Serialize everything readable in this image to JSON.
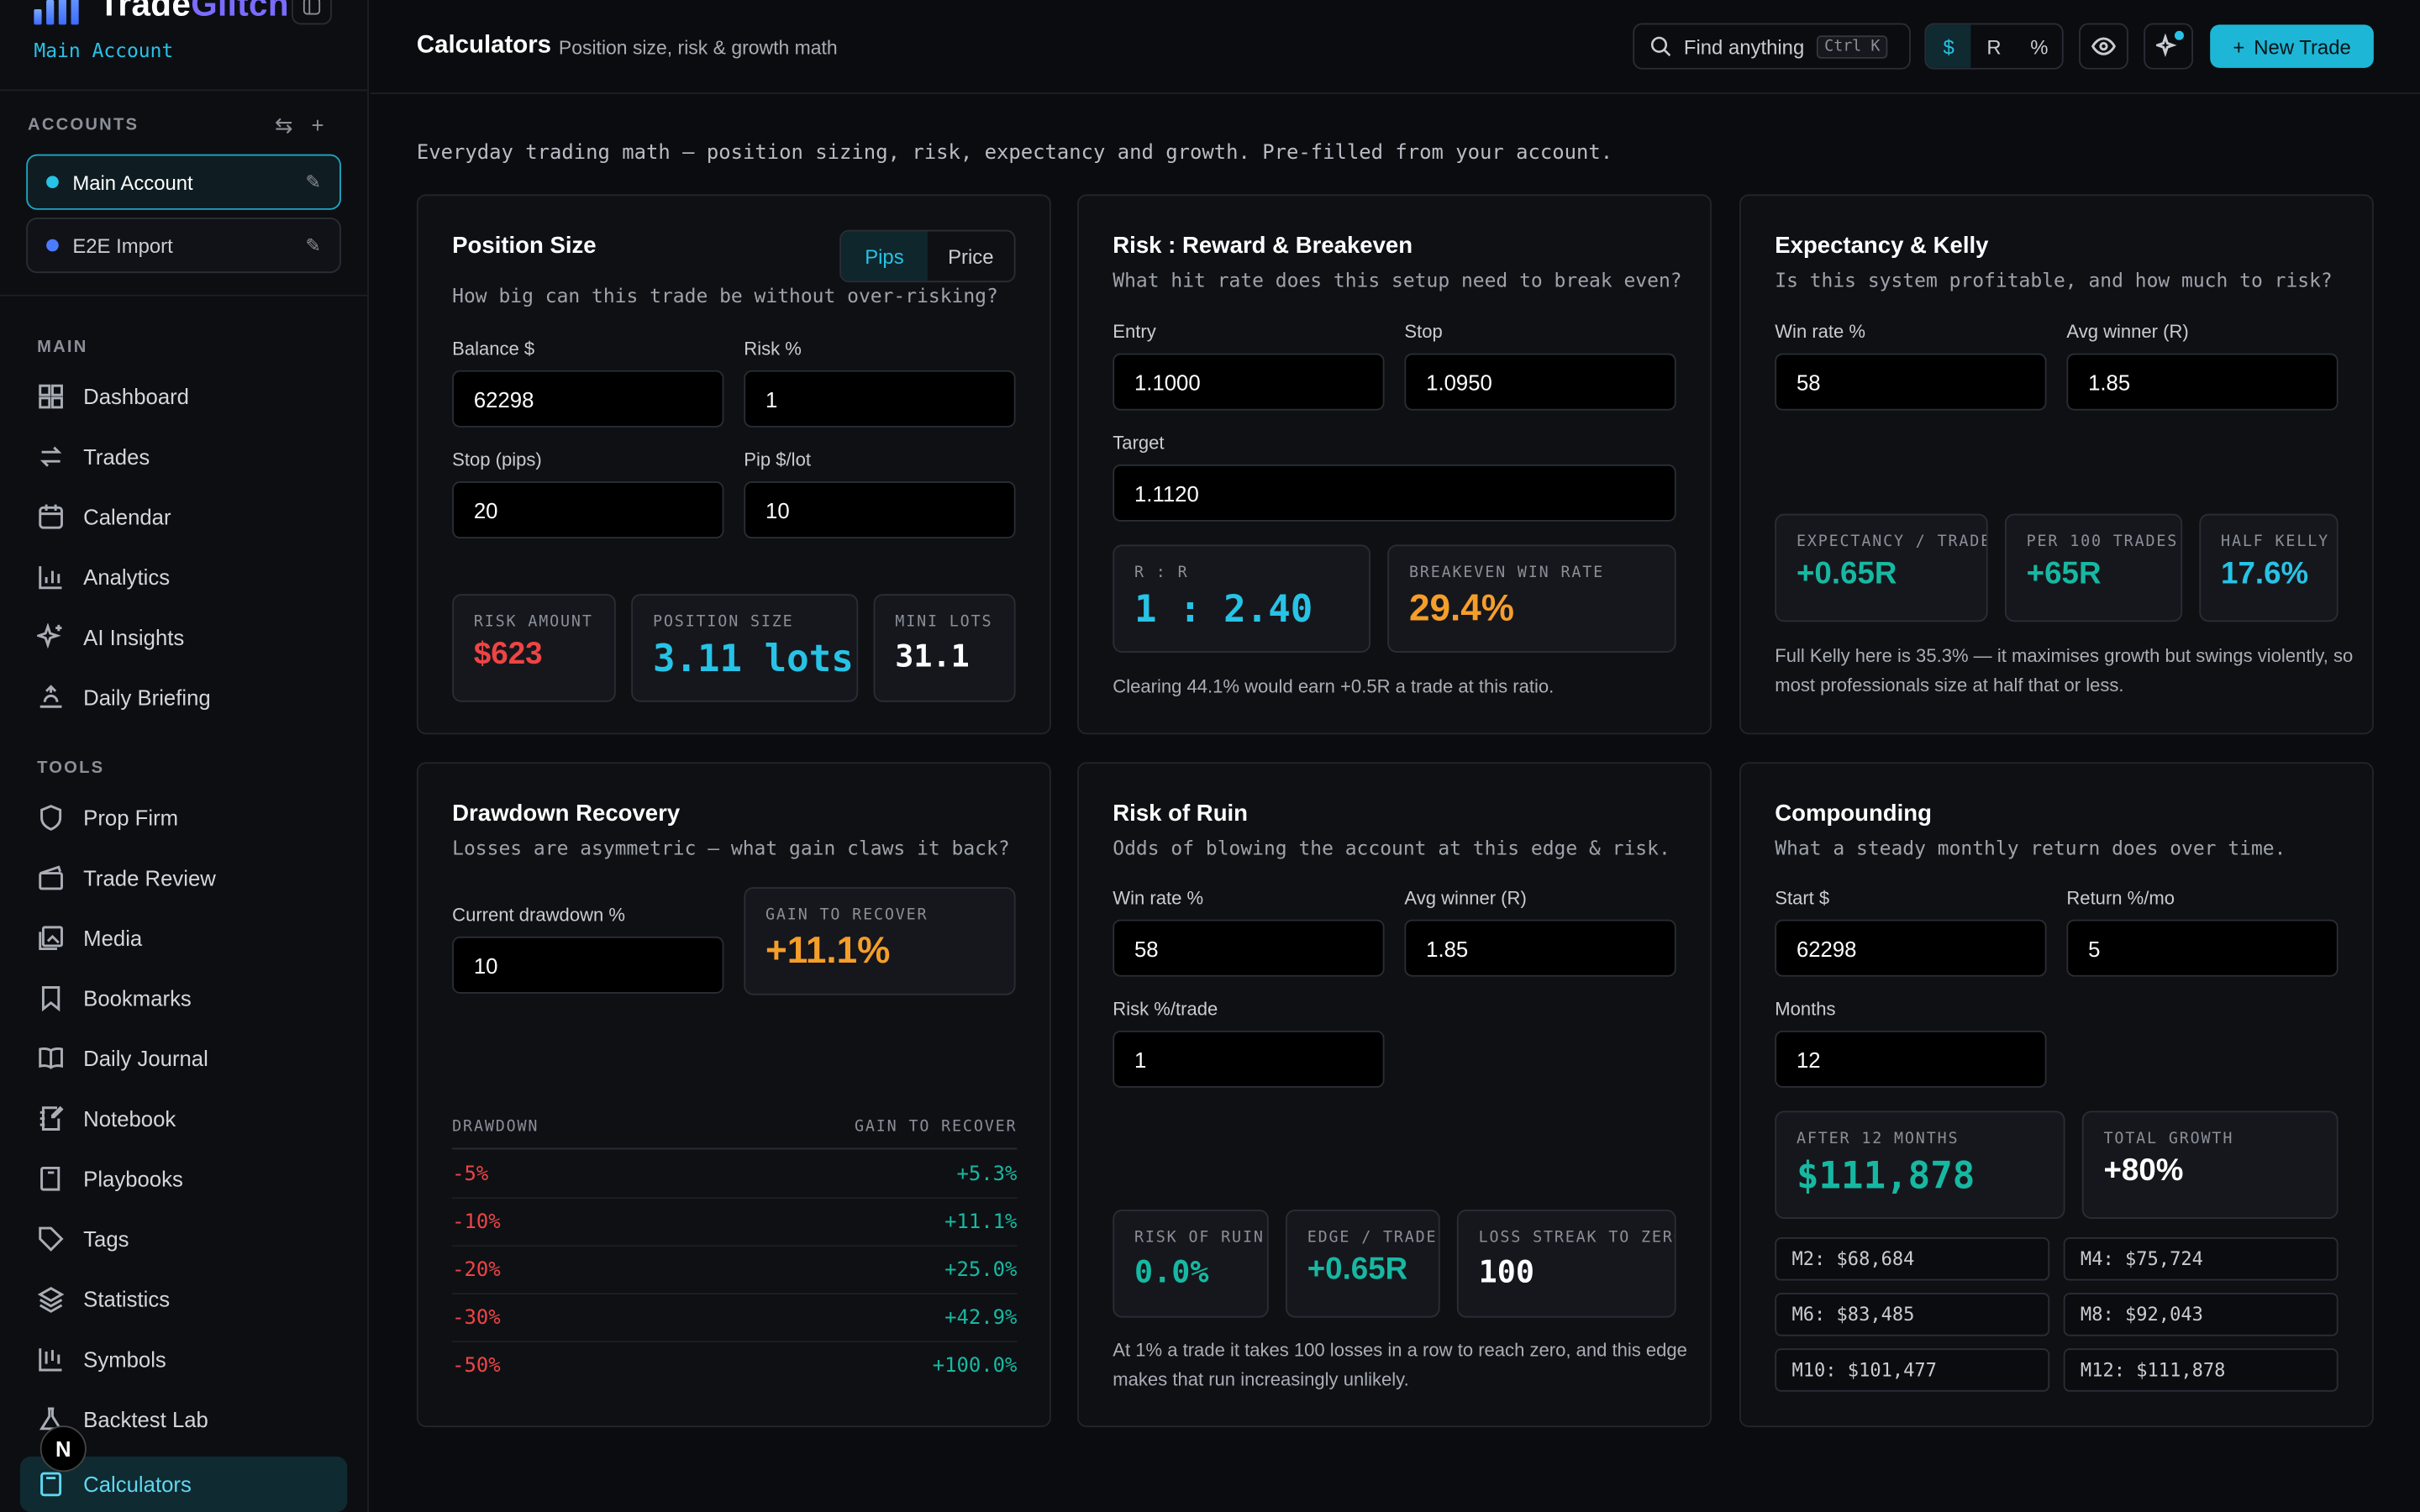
{
  "brand": {
    "name_a": "Trade",
    "name_b": "Glitch",
    "account": "Main Account"
  },
  "accounts": {
    "label": "ACCOUNTS",
    "items": [
      {
        "name": "Main Account"
      },
      {
        "name": "E2E Import"
      }
    ]
  },
  "nav": {
    "main_label": "MAIN",
    "main": [
      "Dashboard",
      "Trades",
      "Calendar",
      "Analytics",
      "AI Insights",
      "Daily Briefing"
    ],
    "tools_label": "TOOLS",
    "tools": [
      "Prop Firm",
      "Trade Review",
      "Media",
      "Bookmarks",
      "Daily Journal",
      "Notebook",
      "Playbooks",
      "Tags",
      "Statistics",
      "Symbols",
      "Backtest Lab",
      "Calculators"
    ],
    "badge": "N"
  },
  "header": {
    "title": "Calculators",
    "subtitle": "Position size, risk & growth math",
    "search_placeholder": "Find anything",
    "search_kbd": "Ctrl K",
    "units": [
      "$",
      "R",
      "%"
    ],
    "new_trade": "New Trade"
  },
  "intro": "Everyday trading math — position sizing, risk, expectancy and growth. Pre-filled from your account.",
  "position_size": {
    "title": "Position Size",
    "desc": "How big can this trade be without over-risking?",
    "modes": [
      "Pips",
      "Price"
    ],
    "balance_label": "Balance $",
    "balance": "62298",
    "risk_label": "Risk %",
    "risk": "1",
    "stop_label": "Stop (pips)",
    "stop": "20",
    "pip_label": "Pip $/lot",
    "pip": "10",
    "risk_amount_label": "RISK AMOUNT",
    "risk_amount": "$623",
    "position_label": "POSITION SIZE",
    "position": "3.11 lots",
    "mini_label": "MINI LOTS",
    "mini": "31.1"
  },
  "rr": {
    "title": "Risk : Reward & Breakeven",
    "desc": "What hit rate does this setup need to break even?",
    "entry_label": "Entry",
    "entry": "1.1000",
    "stop_label": "Stop",
    "stop": "1.0950",
    "target_label": "Target",
    "target": "1.1120",
    "ratio_label": "R : R",
    "ratio": "1 : 2.40",
    "be_label": "BREAKEVEN WIN RATE",
    "be": "29.4%",
    "note": "Clearing 44.1% would earn +0.5R a trade at this ratio."
  },
  "expectancy": {
    "title": "Expectancy & Kelly",
    "desc": "Is this system profitable, and how much to risk?",
    "win_label": "Win rate %",
    "win": "58",
    "avg_label": "Avg winner (R)",
    "avg": "1.85",
    "exp_label": "EXPECTANCY / TRADE",
    "exp": "+0.65R",
    "per100_label": "PER 100 TRADES",
    "per100": "+65R",
    "kelly_label": "HALF KELLY",
    "kelly": "17.6%",
    "note_1": "Full Kelly here is 35.3% — it maximises growth but swings violently, so",
    "note_2": "most professionals size at half that or less."
  },
  "drawdown": {
    "title": "Drawdown Recovery",
    "desc": "Losses are asymmetric — what gain claws it back?",
    "current_label": "Current drawdown %",
    "current": "10",
    "gain_label": "GAIN TO RECOVER",
    "gain": "+11.1%",
    "col_a": "DRAWDOWN",
    "col_b": "GAIN TO RECOVER",
    "rows": [
      {
        "dd": "-5%",
        "gain": "+5.3%"
      },
      {
        "dd": "-10%",
        "gain": "+11.1%"
      },
      {
        "dd": "-20%",
        "gain": "+25.0%"
      },
      {
        "dd": "-30%",
        "gain": "+42.9%"
      },
      {
        "dd": "-50%",
        "gain": "+100.0%"
      }
    ]
  },
  "ruin": {
    "title": "Risk of Ruin",
    "desc": "Odds of blowing the account at this edge & risk.",
    "win_label": "Win rate %",
    "win": "58",
    "avg_label": "Avg winner (R)",
    "avg": "1.85",
    "risk_label": "Risk %/trade",
    "risk": "1",
    "ror_label": "RISK OF RUIN",
    "ror": "0.0%",
    "edge_label": "EDGE / TRADE",
    "edge": "+0.65R",
    "streak_label": "LOSS STREAK TO ZERO",
    "streak": "100",
    "note_1": "At 1% a trade it takes 100 losses in a row to reach zero, and this edge",
    "note_2": "makes that run increasingly unlikely."
  },
  "compounding": {
    "title": "Compounding",
    "desc": "What a steady monthly return does over time.",
    "start_label": "Start $",
    "start": "62298",
    "return_label": "Return %/mo",
    "return": "5",
    "months_label": "Months",
    "months": "12",
    "after_label": "AFTER 12 MONTHS",
    "after": "$111,878",
    "growth_label": "TOTAL GROWTH",
    "growth": "+80%",
    "chips": [
      "M2: $68,684",
      "M4: $75,724",
      "M6: $83,485",
      "M8: $92,043",
      "M10: $101,477",
      "M12: $111,878"
    ]
  },
  "colors": {
    "accent": "#27c3e6",
    "negative": "#ef4444",
    "warning": "#f59e2a",
    "positive": "#17b8a2"
  }
}
